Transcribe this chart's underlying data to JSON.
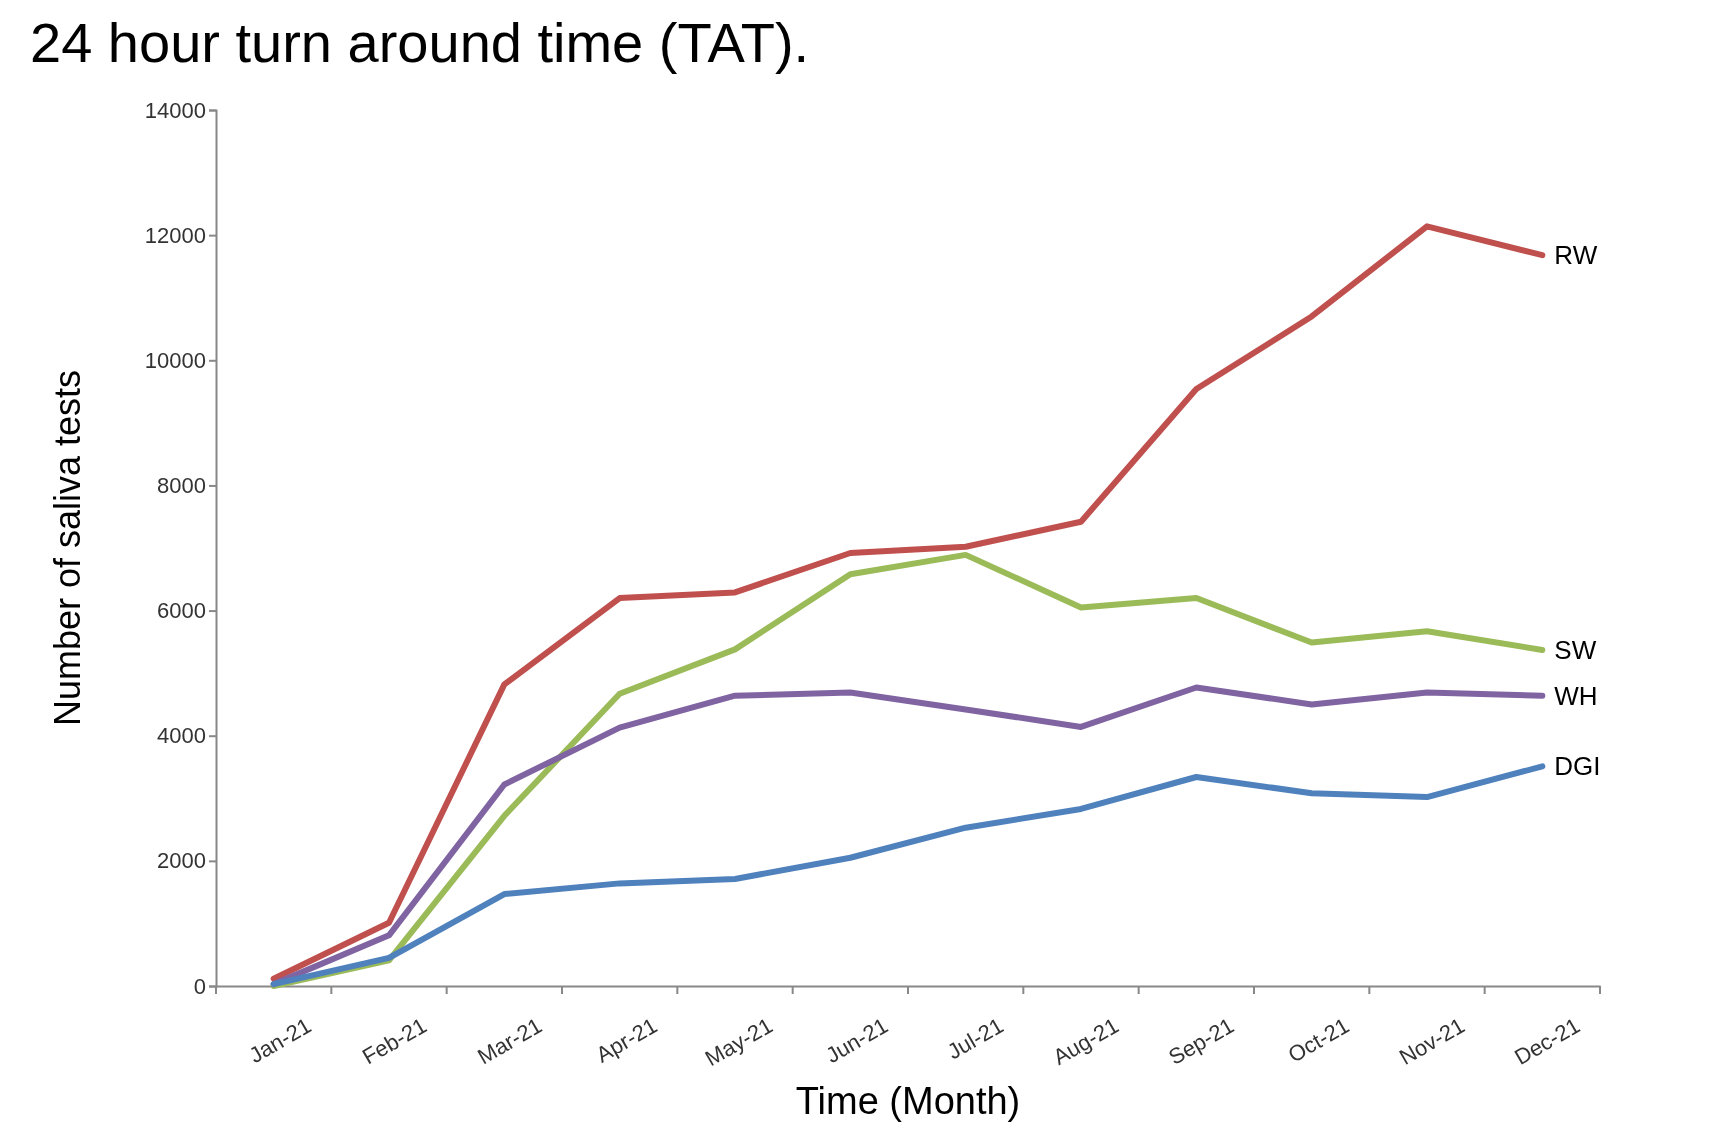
{
  "chart_data": {
    "type": "line",
    "title": "24 hour turn around time (TAT).",
    "xlabel": "Time (Month)",
    "ylabel": "Number of saliva tests",
    "categories": [
      "Jan-21",
      "Feb-21",
      "Mar-21",
      "Apr-21",
      "May-21",
      "Jun-21",
      "Jul-21",
      "Aug-21",
      "Sep-21",
      "Oct-21",
      "Nov-21",
      "Dec-21"
    ],
    "ylim": [
      0,
      14000
    ],
    "yticks": [
      0,
      2000,
      4000,
      6000,
      8000,
      10000,
      12000,
      14000
    ],
    "grid": false,
    "legend": false,
    "marker": "none",
    "line_style": "solid",
    "series": [
      {
        "name": "RW",
        "color": "#c0504d",
        "values": [
          115,
          1010,
          4820,
          6200,
          6290,
          6920,
          7020,
          7420,
          9540,
          10700,
          12140,
          11680
        ]
      },
      {
        "name": "SW",
        "color": "#9bbb59",
        "values": [
          0,
          410,
          2720,
          4670,
          5380,
          6580,
          6890,
          6050,
          6200,
          5490,
          5670,
          5370
        ]
      },
      {
        "name": "WH",
        "color": "#8064a2",
        "values": [
          30,
          810,
          3220,
          4130,
          4640,
          4690,
          4420,
          4140,
          4770,
          4500,
          4690,
          4640
        ]
      },
      {
        "name": "DGI",
        "color": "#4f81bd",
        "values": [
          30,
          450,
          1470,
          1640,
          1710,
          2050,
          2530,
          2830,
          3340,
          3080,
          3020,
          3510
        ]
      }
    ]
  }
}
